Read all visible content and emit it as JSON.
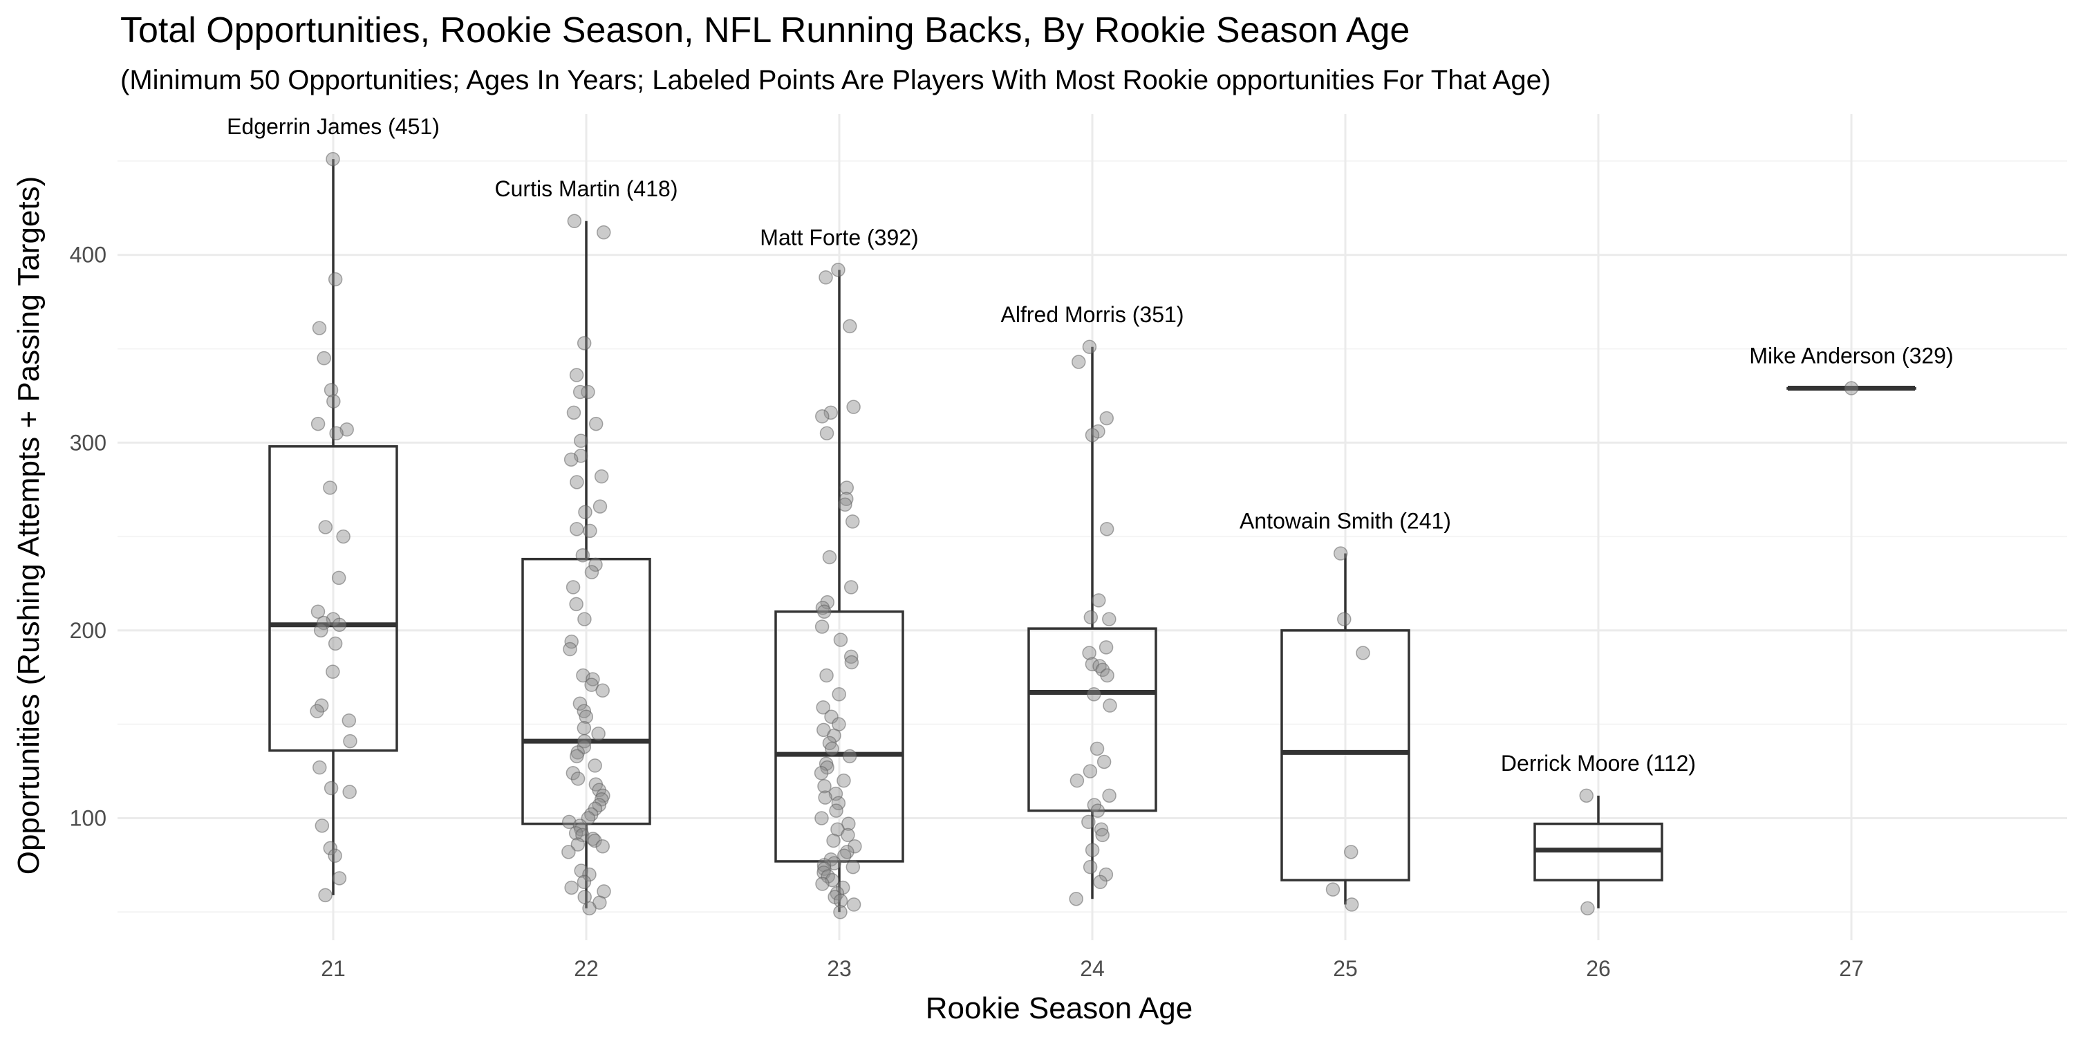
{
  "chart_data": {
    "type": "boxplot",
    "title": "Total Opportunities, Rookie Season, NFL Running Backs, By Rookie Season Age",
    "subtitle": "(Minimum 50 Opportunities; Ages In Years; Labeled Points Are Players With Most Rookie opportunities For That Age)",
    "xlabel": "Rookie Season Age",
    "ylabel": "Opportunities (Rushing Attempts + Passing Targets)",
    "categories": [
      "21",
      "22",
      "23",
      "24",
      "25",
      "26",
      "27"
    ],
    "y_ticks": [
      100,
      200,
      300,
      400
    ],
    "ylim": [
      35,
      475
    ],
    "grid": true,
    "boxes": [
      {
        "age": "21",
        "min": 59,
        "q1": 136,
        "median": 203,
        "q3": 298,
        "max": 451
      },
      {
        "age": "22",
        "min": 52,
        "q1": 97,
        "median": 141,
        "q3": 238,
        "max": 418
      },
      {
        "age": "23",
        "min": 50,
        "q1": 77,
        "median": 134,
        "q3": 210,
        "max": 392
      },
      {
        "age": "24",
        "min": 57,
        "q1": 104,
        "median": 167,
        "q3": 201,
        "max": 351
      },
      {
        "age": "25",
        "min": 54,
        "q1": 67,
        "median": 135,
        "q3": 200,
        "max": 241
      },
      {
        "age": "26",
        "min": 52,
        "q1": 67,
        "median": 83,
        "q3": 97,
        "max": 112
      },
      {
        "age": "27",
        "min": 329,
        "q1": 329,
        "median": 329,
        "q3": 329,
        "max": 329
      }
    ],
    "points": [
      {
        "age": "21",
        "values": [
          451,
          387,
          361,
          345,
          328,
          322,
          310,
          307,
          305,
          276,
          255,
          250,
          228,
          210,
          206,
          204,
          203,
          200,
          193,
          178,
          160,
          157,
          152,
          141,
          127,
          116,
          114,
          96,
          84,
          80,
          68,
          59
        ]
      },
      {
        "age": "22",
        "values": [
          418,
          412,
          353,
          336,
          327,
          327,
          316,
          310,
          301,
          293,
          291,
          282,
          279,
          266,
          263,
          254,
          253,
          240,
          235,
          231,
          223,
          214,
          206,
          194,
          190,
          176,
          174,
          171,
          168,
          161,
          157,
          154,
          148,
          145,
          141,
          138,
          135,
          133,
          128,
          124,
          121,
          118,
          115,
          112,
          110,
          107,
          105,
          102,
          100,
          98,
          96,
          94,
          92,
          91,
          89,
          88,
          86,
          85,
          82,
          72,
          70,
          66,
          63,
          61,
          58,
          55,
          52
        ]
      },
      {
        "age": "23",
        "values": [
          392,
          388,
          362,
          319,
          316,
          314,
          305,
          276,
          270,
          267,
          258,
          239,
          223,
          215,
          212,
          210,
          202,
          195,
          186,
          183,
          176,
          166,
          159,
          154,
          150,
          147,
          144,
          140,
          137,
          133,
          129,
          127,
          124,
          120,
          117,
          113,
          111,
          108,
          104,
          100,
          97,
          94,
          91,
          88,
          85,
          82,
          80,
          78,
          76,
          75,
          74,
          73,
          71,
          69,
          67,
          65,
          63,
          60,
          58,
          56,
          54,
          50
        ]
      },
      {
        "age": "24",
        "values": [
          351,
          343,
          313,
          306,
          304,
          254,
          216,
          207,
          206,
          191,
          188,
          182,
          181,
          179,
          176,
          166,
          160,
          137,
          130,
          125,
          120,
          112,
          107,
          104,
          98,
          94,
          91,
          83,
          74,
          70,
          66,
          57
        ]
      },
      {
        "age": "25",
        "values": [
          241,
          206,
          188,
          82,
          62,
          54
        ]
      },
      {
        "age": "26",
        "values": [
          112,
          52
        ]
      },
      {
        "age": "27",
        "values": [
          329
        ]
      }
    ],
    "labels": [
      {
        "age": "21",
        "text": "Edgerrin James (451)",
        "value": 451
      },
      {
        "age": "22",
        "text": "Curtis Martin (418)",
        "value": 418
      },
      {
        "age": "23",
        "text": "Matt Forte (392)",
        "value": 392
      },
      {
        "age": "24",
        "text": "Alfred Morris (351)",
        "value": 351
      },
      {
        "age": "25",
        "text": "Antowain Smith (241)",
        "value": 241
      },
      {
        "age": "26",
        "text": "Derrick Moore (112)",
        "value": 112
      },
      {
        "age": "27",
        "text": "Mike Anderson (329)",
        "value": 329
      }
    ],
    "colors": {
      "grid": "#ebebeb",
      "box_stroke": "#333333",
      "point_fill": "#8c8c8c",
      "point_stroke": "#595959"
    }
  }
}
